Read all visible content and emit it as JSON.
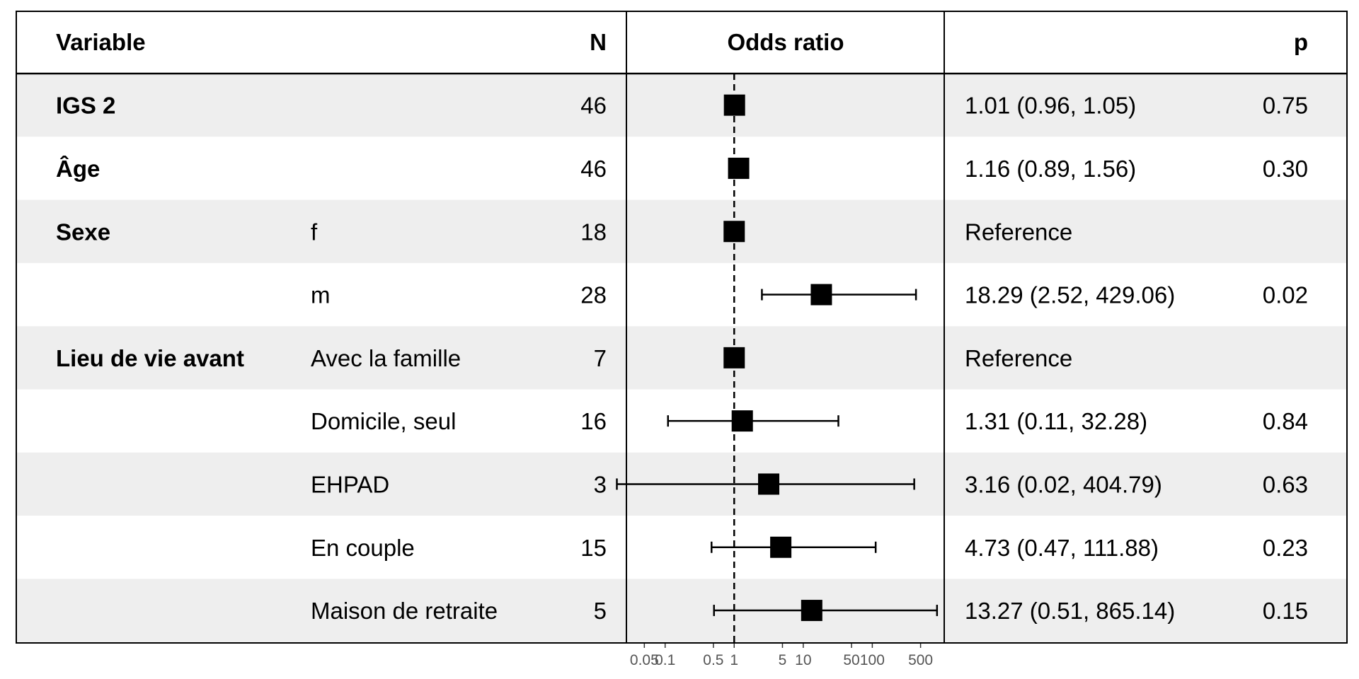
{
  "headers": {
    "variable": "Variable",
    "n": "N",
    "odds_ratio": "Odds ratio",
    "p": "p"
  },
  "colors": {
    "stripe": "#eeeeee",
    "marker": "#000000",
    "tick_label": "#555555"
  },
  "chart_data": {
    "type": "forest",
    "scale": "log",
    "reference_line": 1,
    "xlim": [
      0.0275,
      1100
    ],
    "ticks": [
      {
        "value": 0.05,
        "label": "0.05"
      },
      {
        "value": 0.1,
        "label": "0.1"
      },
      {
        "value": 0.5,
        "label": "0.5"
      },
      {
        "value": 1,
        "label": "1"
      },
      {
        "value": 5,
        "label": "5"
      },
      {
        "value": 10,
        "label": "10"
      },
      {
        "value": 50,
        "label": "50"
      },
      {
        "value": 100,
        "label": "100"
      },
      {
        "value": 500,
        "label": "500"
      }
    ],
    "rows": [
      {
        "variable": "IGS 2",
        "level": "",
        "n": "46",
        "or": 1.01,
        "lo": 0.96,
        "hi": 1.05,
        "estimate": "1.01 (0.96, 1.05)",
        "p": "0.75"
      },
      {
        "variable": "Âge",
        "level": "",
        "n": "46",
        "or": 1.16,
        "lo": 0.89,
        "hi": 1.56,
        "estimate": "1.16 (0.89, 1.56)",
        "p": "0.30"
      },
      {
        "variable": "Sexe",
        "level": "f",
        "n": "18",
        "or": 1,
        "lo": null,
        "hi": null,
        "estimate": "Reference",
        "p": ""
      },
      {
        "variable": "",
        "level": "m",
        "n": "28",
        "or": 18.29,
        "lo": 2.52,
        "hi": 429.06,
        "estimate": "18.29 (2.52, 429.06)",
        "p": "0.02"
      },
      {
        "variable": "Lieu de vie avant",
        "level": "Avec la famille",
        "n": "7",
        "or": 1,
        "lo": null,
        "hi": null,
        "estimate": "Reference",
        "p": ""
      },
      {
        "variable": "",
        "level": "Domicile, seul",
        "n": "16",
        "or": 1.31,
        "lo": 0.11,
        "hi": 32.28,
        "estimate": "1.31 (0.11, 32.28)",
        "p": "0.84"
      },
      {
        "variable": "",
        "level": "EHPAD",
        "n": "3",
        "or": 3.16,
        "lo": 0.02,
        "hi": 404.79,
        "estimate": "3.16 (0.02, 404.79)",
        "p": "0.63"
      },
      {
        "variable": "",
        "level": "En couple",
        "n": "15",
        "or": 4.73,
        "lo": 0.47,
        "hi": 111.88,
        "estimate": "4.73 (0.47, 111.88)",
        "p": "0.23"
      },
      {
        "variable": "",
        "level": "Maison de retraite",
        "n": "5",
        "or": 13.27,
        "lo": 0.51,
        "hi": 865.14,
        "estimate": "13.27 (0.51, 865.14)",
        "p": "0.15"
      }
    ]
  }
}
